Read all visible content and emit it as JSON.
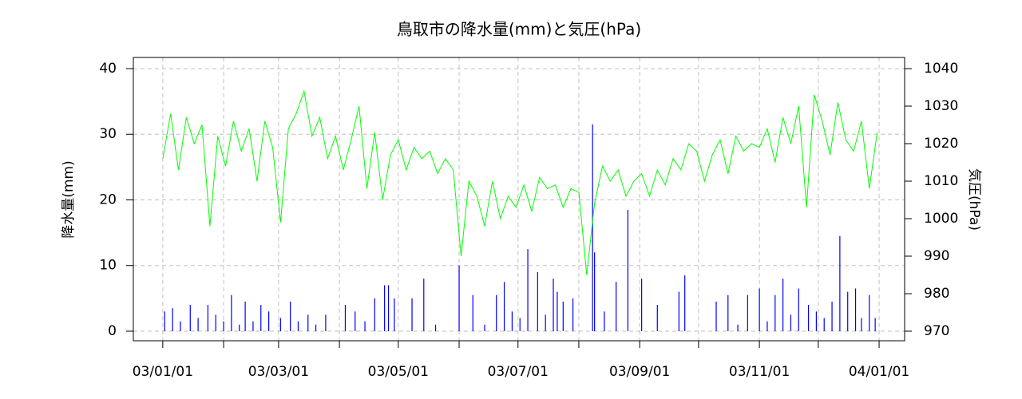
{
  "chart_data": {
    "type": "line",
    "title": "鳥取市の降水量(mm)と気圧(hPa)",
    "ylabel": "降水量(mm)",
    "y2label": "気圧(hPa)",
    "xlim": [
      "02/12/17",
      "04/01/14"
    ],
    "xticks": [
      "03/01/01",
      {
        "value": "03/02/01",
        "label": null
      },
      "03/03/01",
      {
        "value": "03/04/01",
        "label": null
      },
      "03/05/01",
      {
        "value": "03/06/01",
        "label": null
      },
      "03/07/01",
      {
        "value": "03/08/01",
        "label": null
      },
      "03/09/01",
      {
        "value": "03/10/01",
        "label": null
      },
      "03/11/01",
      {
        "value": "03/12/01",
        "label": null
      },
      "04/01/01"
    ],
    "ylim": [
      -1.46,
      41.7
    ],
    "yticks": [
      0,
      10,
      20,
      30,
      40
    ],
    "y2lim": [
      967.45,
      1042.98
    ],
    "y2ticks": [
      970,
      980,
      990,
      1000,
      1010,
      1020,
      1030,
      1040
    ],
    "grid": true,
    "series": [
      {
        "type": "bar",
        "color": "#0000ff",
        "axis": "y",
        "x": [
          "03/01/02",
          "03/01/06",
          "03/01/10",
          "03/01/15",
          "03/01/19",
          "03/01/24",
          "03/01/28",
          "03/02/01",
          "03/02/05",
          "03/02/09",
          "03/02/12",
          "03/02/16",
          "03/02/20",
          "03/02/24",
          "03/03/02",
          "03/03/07",
          "03/03/11",
          "03/03/16",
          "03/03/20",
          "03/03/25",
          "03/04/04",
          "03/04/09",
          "03/04/14",
          "03/04/19",
          "03/04/24",
          "03/04/26",
          "03/04/29",
          "03/05/08",
          "03/05/14",
          "03/05/20",
          "03/06/01",
          "03/06/08",
          "03/06/14",
          "03/06/20",
          "03/06/24",
          "03/06/28",
          "03/07/02",
          "03/07/06",
          "03/07/11",
          "03/07/15",
          "03/07/19",
          "03/07/21",
          "03/07/24",
          "03/07/29",
          "03/08/08",
          "03/08/09",
          "03/08/14",
          "03/08/20",
          "03/08/26",
          "03/09/02",
          "03/09/10",
          "03/09/21",
          "03/09/24",
          "03/10/10",
          "03/10/16",
          "03/10/21",
          "03/10/26",
          "03/11/01",
          "03/11/05",
          "03/11/09",
          "03/11/13",
          "03/11/17",
          "03/11/21",
          "03/11/26",
          "03/11/30",
          "03/12/04",
          "03/12/08",
          "03/12/12",
          "03/12/16",
          "03/12/20",
          "03/12/23",
          "03/12/27",
          "03/12/30"
        ],
        "values": [
          3,
          3.5,
          1.5,
          4,
          2,
          4,
          2.5,
          1.5,
          5.5,
          1,
          4.5,
          1.5,
          4,
          3,
          2,
          4.5,
          1.5,
          2.5,
          1,
          2.5,
          4,
          3,
          1.5,
          5,
          7,
          7,
          5,
          5,
          8,
          1,
          10,
          5.5,
          1,
          5.5,
          7.5,
          3,
          2,
          12.5,
          9,
          2.5,
          8,
          6,
          4.5,
          5,
          31.5,
          12,
          3,
          7.5,
          18.5,
          8,
          4,
          6,
          8.5,
          4.5,
          5.5,
          1,
          5.5,
          6.5,
          1.5,
          5.5,
          8,
          2.5,
          6.5,
          4,
          3,
          2,
          4.5,
          14.5,
          6,
          6.5,
          2,
          5.5,
          2
        ]
      },
      {
        "type": "line",
        "color": "#00ff00",
        "axis": "y2",
        "x": [
          "03/01/01",
          "03/01/05",
          "03/01/09",
          "03/01/13",
          "03/01/17",
          "03/01/21",
          "03/01/25",
          "03/01/29",
          "03/02/02",
          "03/02/06",
          "03/02/10",
          "03/02/14",
          "03/02/18",
          "03/02/22",
          "03/02/26",
          "03/03/02",
          "03/03/06",
          "03/03/10",
          "03/03/14",
          "03/03/18",
          "03/03/22",
          "03/03/26",
          "03/03/30",
          "03/04/03",
          "03/04/07",
          "03/04/11",
          "03/04/15",
          "03/04/19",
          "03/04/23",
          "03/04/27",
          "03/05/01",
          "03/05/05",
          "03/05/09",
          "03/05/13",
          "03/05/17",
          "03/05/21",
          "03/05/25",
          "03/05/29",
          "03/06/02",
          "03/06/06",
          "03/06/10",
          "03/06/14",
          "03/06/18",
          "03/06/22",
          "03/06/26",
          "03/06/30",
          "03/07/04",
          "03/07/08",
          "03/07/12",
          "03/07/16",
          "03/07/20",
          "03/07/24",
          "03/07/28",
          "03/08/01",
          "03/08/05",
          "03/08/09",
          "03/08/13",
          "03/08/17",
          "03/08/21",
          "03/08/25",
          "03/08/29",
          "03/09/02",
          "03/09/06",
          "03/09/10",
          "03/09/14",
          "03/09/18",
          "03/09/22",
          "03/09/26",
          "03/09/30",
          "03/10/04",
          "03/10/08",
          "03/10/12",
          "03/10/16",
          "03/10/20",
          "03/10/24",
          "03/10/28",
          "03/11/01",
          "03/11/05",
          "03/11/09",
          "03/11/13",
          "03/11/17",
          "03/11/21",
          "03/11/25",
          "03/11/29",
          "03/12/03",
          "03/12/07",
          "03/12/11",
          "03/12/15",
          "03/12/19",
          "03/12/23",
          "03/12/27",
          "03/12/31"
        ],
        "values": [
          1016,
          1028,
          1013,
          1027,
          1020,
          1025,
          998,
          1022,
          1014,
          1026,
          1018,
          1024,
          1010,
          1026,
          1019,
          999,
          1024,
          1028,
          1034,
          1022,
          1027,
          1016,
          1022,
          1013,
          1021,
          1030,
          1008,
          1023,
          1005,
          1017,
          1021,
          1013,
          1019,
          1016,
          1018,
          1012,
          1016,
          1013,
          990,
          1010,
          1006,
          998,
          1010,
          1000,
          1006,
          1003,
          1009,
          1002,
          1011,
          1008,
          1009,
          1003,
          1008,
          1007,
          985,
          1004,
          1014,
          1010,
          1013,
          1006,
          1010,
          1012,
          1006,
          1013,
          1009,
          1016,
          1013,
          1020,
          1018,
          1010,
          1017,
          1021,
          1012,
          1022,
          1018,
          1020,
          1019,
          1024,
          1015,
          1027,
          1020,
          1030,
          1003,
          1033,
          1026,
          1017,
          1031,
          1021,
          1018,
          1026,
          1008,
          1023
        ]
      }
    ]
  }
}
